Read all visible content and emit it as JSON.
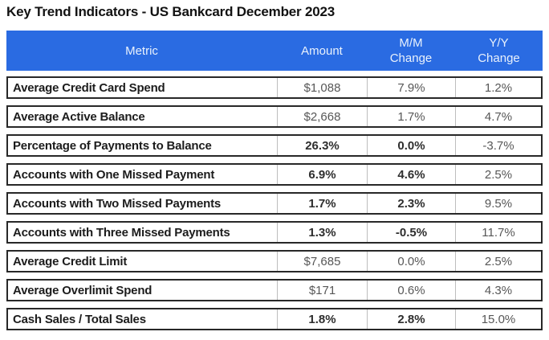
{
  "title": "Key Trend Indicators - US Bankcard December 2023",
  "colors": {
    "header_bg": "#2a6be2",
    "header_fg": "#e9f1fc",
    "row_border": "#282828",
    "divider": "#bdbdbd",
    "metric_fg": "#1c1c1c",
    "value_fg": "#575757",
    "value_emph_fg": "#2e2e2e"
  },
  "table": {
    "header": {
      "metric": {
        "line1": "Metric",
        "line2": ""
      },
      "amount": {
        "line1": "Amount",
        "line2": ""
      },
      "mm": {
        "line1": "M/M",
        "line2": "Change"
      },
      "yy": {
        "line1": "Y/Y",
        "line2": "Change"
      }
    },
    "rows": [
      {
        "metric": "Average Credit Card Spend",
        "amount": "$1,088",
        "mm": "7.9%",
        "yy": "1.2%",
        "emph": false
      },
      {
        "metric": "Average Active Balance",
        "amount": "$2,668",
        "mm": "1.7%",
        "yy": "4.7%",
        "emph": false
      },
      {
        "metric": "Percentage of Payments to Balance",
        "amount": "26.3%",
        "mm": "0.0%",
        "yy": "-3.7%",
        "emph": true
      },
      {
        "metric": "Accounts with One Missed Payment",
        "amount": "6.9%",
        "mm": "4.6%",
        "yy": "2.5%",
        "emph": true
      },
      {
        "metric": "Accounts with Two Missed Payments",
        "amount": "1.7%",
        "mm": "2.3%",
        "yy": "9.5%",
        "emph": true
      },
      {
        "metric": "Accounts with Three Missed Payments",
        "amount": "1.3%",
        "mm": "-0.5%",
        "yy": "11.7%",
        "emph": true
      },
      {
        "metric": "Average Credit Limit",
        "amount": "$7,685",
        "mm": "0.0%",
        "yy": "2.5%",
        "emph": false
      },
      {
        "metric": "Average Overlimit Spend",
        "amount": "$171",
        "mm": "0.6%",
        "yy": "4.3%",
        "emph": false
      },
      {
        "metric": "Cash Sales / Total Sales",
        "amount": "1.8%",
        "mm": "2.8%",
        "yy": "15.0%",
        "emph": true
      }
    ]
  },
  "chart_data": {
    "type": "table",
    "title": "Key Trend Indicators - US Bankcard December 2023",
    "columns": [
      "Metric",
      "Amount",
      "M/M Change",
      "Y/Y Change"
    ],
    "rows": [
      [
        "Average Credit Card Spend",
        "$1,088",
        "7.9%",
        "1.2%"
      ],
      [
        "Average Active Balance",
        "$2,668",
        "1.7%",
        "4.7%"
      ],
      [
        "Percentage of Payments to Balance",
        "26.3%",
        "0.0%",
        "-3.7%"
      ],
      [
        "Accounts with One Missed Payment",
        "6.9%",
        "4.6%",
        "2.5%"
      ],
      [
        "Accounts with Two Missed Payments",
        "1.7%",
        "2.3%",
        "9.5%"
      ],
      [
        "Accounts with Three Missed Payments",
        "1.3%",
        "-0.5%",
        "11.7%"
      ],
      [
        "Average Credit Limit",
        "$7,685",
        "0.0%",
        "2.5%"
      ],
      [
        "Average Overlimit Spend",
        "$171",
        "0.6%",
        "4.3%"
      ],
      [
        "Cash Sales / Total Sales",
        "1.8%",
        "2.8%",
        "15.0%"
      ]
    ]
  }
}
